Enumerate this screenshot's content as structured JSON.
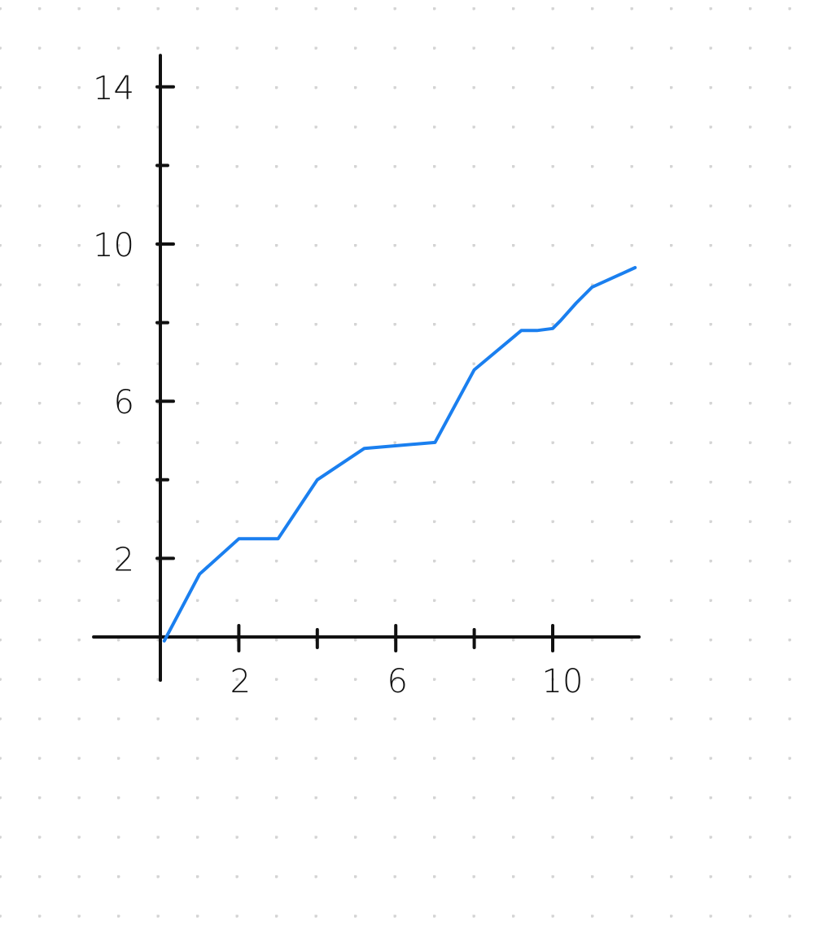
{
  "chart_data": {
    "type": "line",
    "x_axis": {
      "ticks": [
        2,
        4,
        6,
        8,
        10
      ],
      "tick_labels": [
        {
          "value": 2,
          "text": "2"
        },
        {
          "value": 6,
          "text": "6"
        },
        {
          "value": 10,
          "text": "10"
        }
      ],
      "range": [
        -1.7,
        12.2
      ]
    },
    "y_axis": {
      "ticks": [
        2,
        4,
        6,
        8,
        10,
        12,
        14
      ],
      "tick_labels": [
        {
          "value": 2,
          "text": "2"
        },
        {
          "value": 6,
          "text": "6"
        },
        {
          "value": 10,
          "text": "10"
        },
        {
          "value": 14,
          "text": "14"
        }
      ],
      "range": [
        -1.1,
        14.8
      ]
    },
    "series": [
      {
        "color": "#1a7fef",
        "points": [
          [
            0.1,
            -0.1
          ],
          [
            1.0,
            1.6
          ],
          [
            2.0,
            2.5
          ],
          [
            3.0,
            2.5
          ],
          [
            4.0,
            4.0
          ],
          [
            5.2,
            4.8
          ],
          [
            7.0,
            4.95
          ],
          [
            8.0,
            6.8
          ],
          [
            9.2,
            7.8
          ],
          [
            9.6,
            7.8
          ],
          [
            10.0,
            7.85
          ],
          [
            10.2,
            8.05
          ],
          [
            10.6,
            8.5
          ],
          [
            11.0,
            8.9
          ],
          [
            12.1,
            9.4
          ]
        ]
      }
    ],
    "grid": "dot",
    "legend": "none"
  }
}
